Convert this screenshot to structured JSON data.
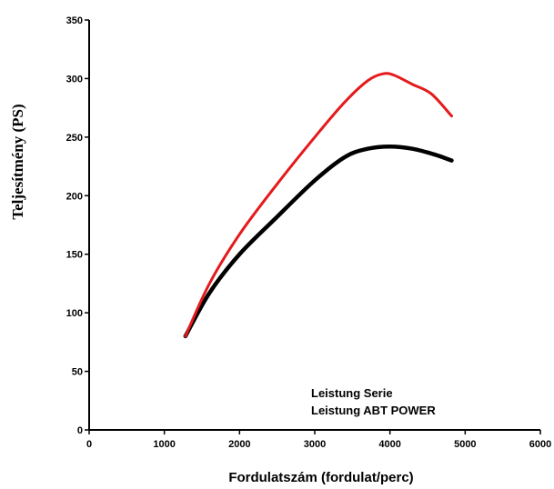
{
  "chart_data": {
    "type": "line",
    "xlabel": "Fordulatszám (fordulat/perc)",
    "ylabel": "Teljesítmény (PS)",
    "xlim": [
      0,
      6000
    ],
    "ylim": [
      0,
      350
    ],
    "xticks": [
      0,
      1000,
      2000,
      3000,
      4000,
      5000,
      6000
    ],
    "yticks": [
      0,
      50,
      100,
      150,
      200,
      250,
      300,
      350
    ],
    "grid": false,
    "legend": {
      "placement": "lower-right",
      "entries": [
        "Leistung Serie",
        "Leistung ABT POWER"
      ]
    },
    "series": [
      {
        "name": "Leistung Serie",
        "color": "#000000",
        "x": [
          1280,
          1600,
          2000,
          2500,
          3000,
          3400,
          3700,
          4000,
          4300,
          4600,
          4820
        ],
        "y": [
          80,
          117,
          150,
          182,
          213,
          233,
          240,
          242,
          240,
          235,
          230
        ]
      },
      {
        "name": "Leistung ABT POWER",
        "color": "#e41a1c",
        "x": [
          1280,
          1600,
          2000,
          2500,
          3000,
          3400,
          3700,
          3900,
          4050,
          4300,
          4550,
          4820
        ],
        "y": [
          80,
          125,
          167,
          210,
          250,
          280,
          298,
          304,
          303,
          295,
          287,
          268
        ]
      }
    ]
  }
}
